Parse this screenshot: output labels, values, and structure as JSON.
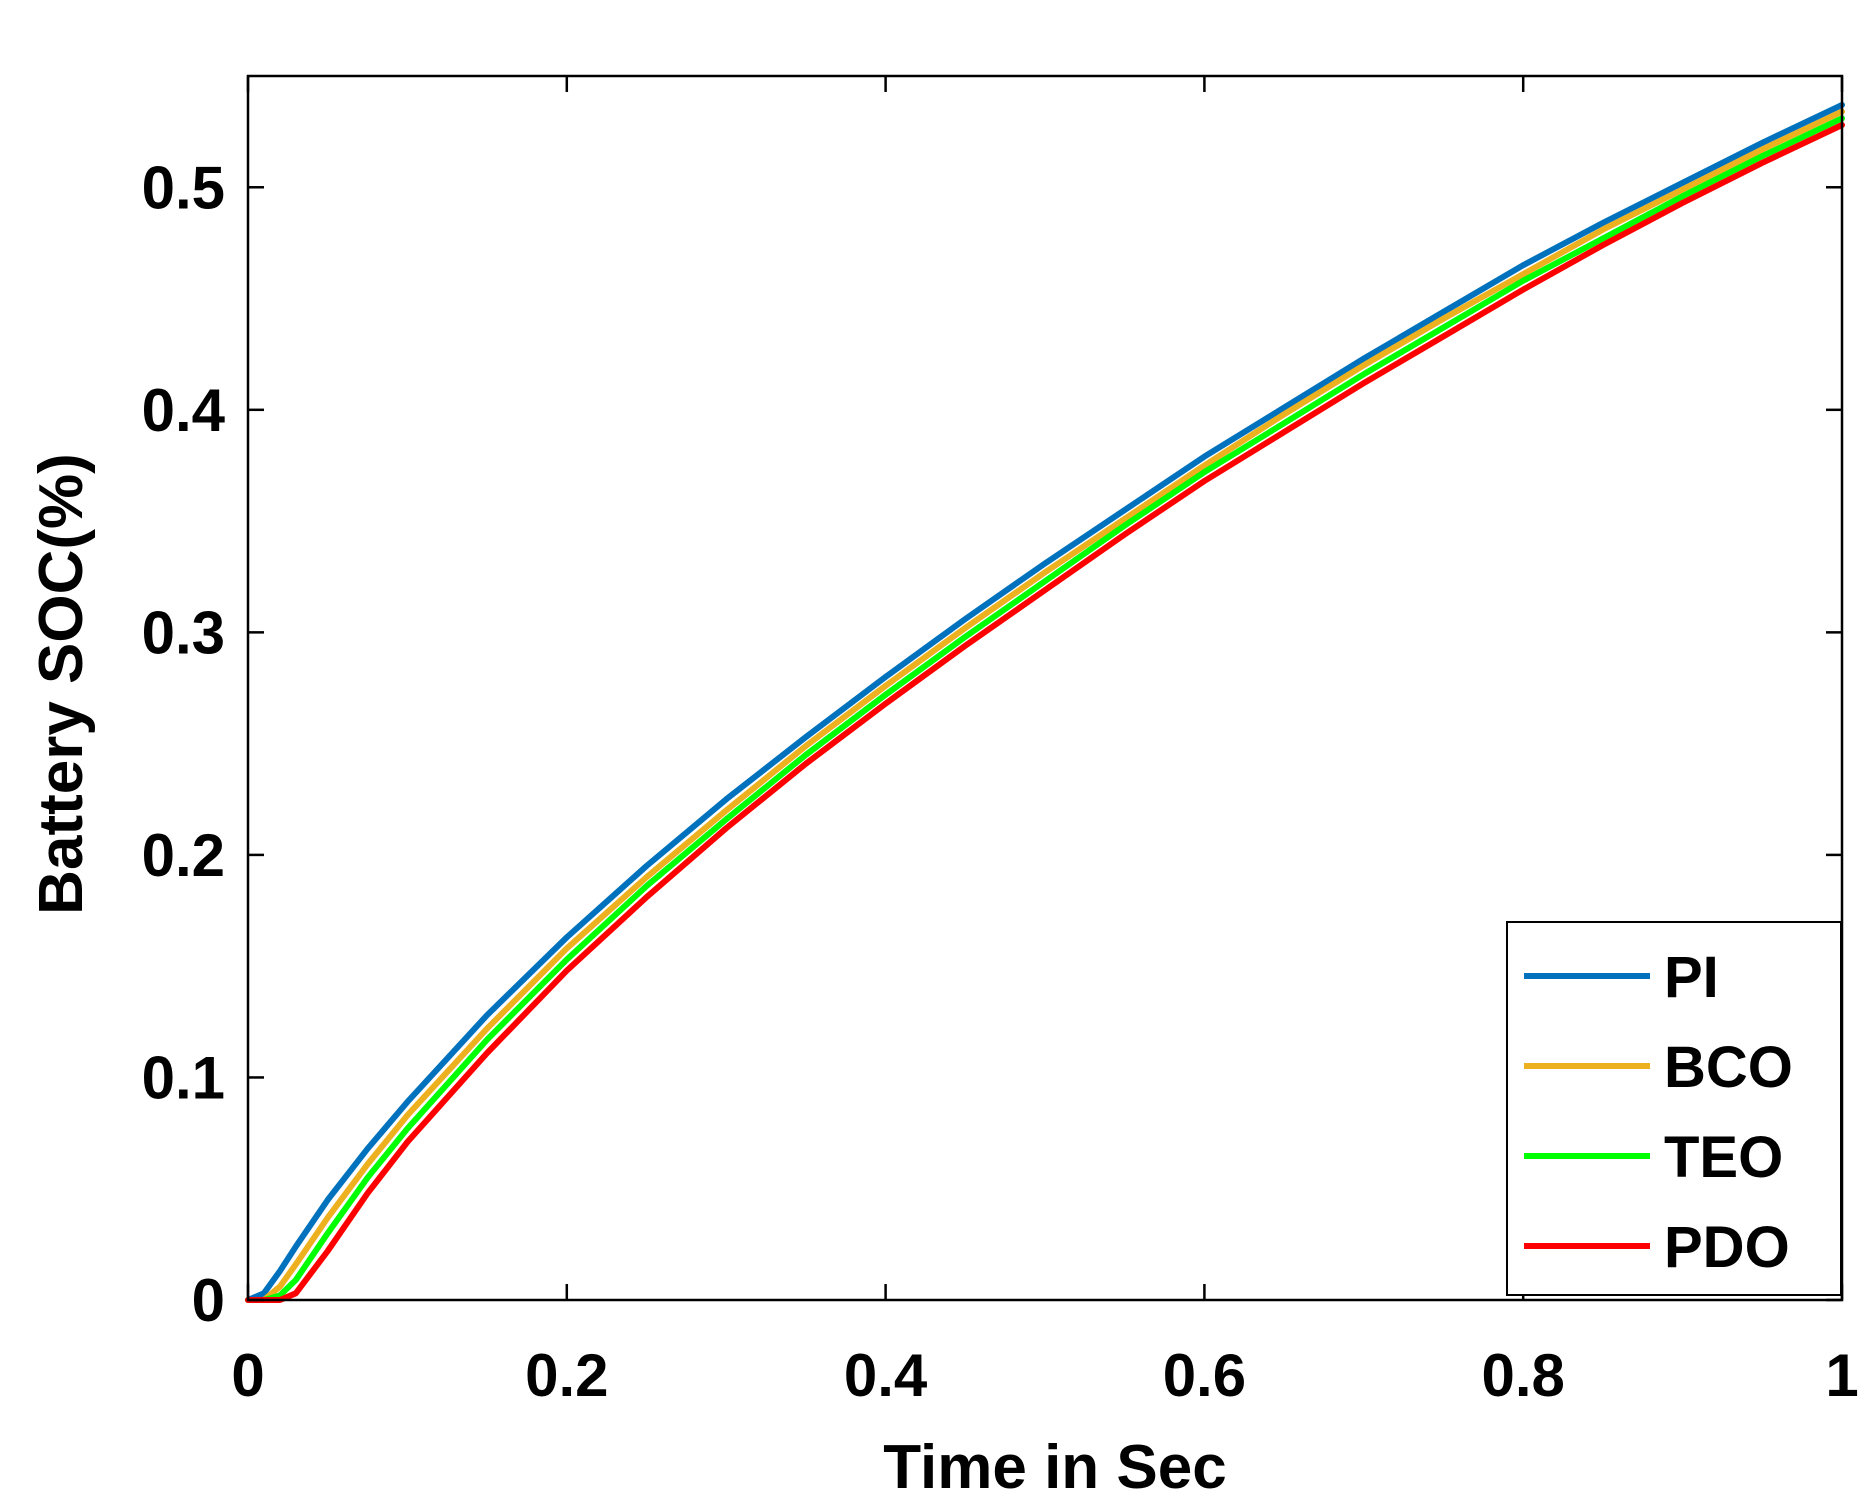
{
  "chart_data": {
    "type": "line",
    "title": "",
    "xlabel": "Time in Sec",
    "ylabel": "Battery SOC(%)",
    "xlim": [
      0,
      1
    ],
    "ylim": [
      0,
      0.55
    ],
    "xticks": [
      0,
      0.2,
      0.4,
      0.6,
      0.8,
      1
    ],
    "xtick_labels": [
      "0",
      "0.2",
      "0.4",
      "0.6",
      "0.8",
      "1"
    ],
    "yticks": [
      0,
      0.1,
      0.2,
      0.3,
      0.4,
      0.5
    ],
    "ytick_labels": [
      "0",
      "0.1",
      "0.2",
      "0.3",
      "0.4",
      "0.5"
    ],
    "grid": false,
    "legend_position": "bottom-right",
    "x": [
      0,
      0.01,
      0.02,
      0.03,
      0.05,
      0.075,
      0.1,
      0.15,
      0.2,
      0.25,
      0.3,
      0.35,
      0.4,
      0.45,
      0.5,
      0.55,
      0.6,
      0.65,
      0.7,
      0.75,
      0.8,
      0.85,
      0.9,
      0.95,
      1.0
    ],
    "series": [
      {
        "name": "PI",
        "color": "#0072BD",
        "values": [
          0,
          0.003,
          0.013,
          0.024,
          0.045,
          0.068,
          0.089,
          0.128,
          0.163,
          0.195,
          0.225,
          0.253,
          0.28,
          0.306,
          0.331,
          0.355,
          0.379,
          0.401,
          0.423,
          0.444,
          0.465,
          0.484,
          0.502,
          0.52,
          0.537
        ]
      },
      {
        "name": "BCO",
        "color": "#EDB120",
        "values": [
          0,
          0.0,
          0.006,
          0.016,
          0.037,
          0.061,
          0.083,
          0.122,
          0.158,
          0.19,
          0.22,
          0.249,
          0.276,
          0.302,
          0.327,
          0.351,
          0.375,
          0.398,
          0.42,
          0.441,
          0.461,
          0.481,
          0.499,
          0.517,
          0.534
        ]
      },
      {
        "name": "TEO",
        "color": "#00FF00",
        "values": [
          0,
          0.0,
          0.002,
          0.009,
          0.03,
          0.055,
          0.077,
          0.117,
          0.153,
          0.186,
          0.216,
          0.245,
          0.272,
          0.298,
          0.323,
          0.348,
          0.372,
          0.394,
          0.416,
          0.437,
          0.458,
          0.477,
          0.496,
          0.514,
          0.531
        ]
      },
      {
        "name": "PDO",
        "color": "#FF0000",
        "values": [
          0,
          0.0,
          0.0,
          0.003,
          0.022,
          0.048,
          0.071,
          0.111,
          0.148,
          0.181,
          0.212,
          0.241,
          0.268,
          0.294,
          0.319,
          0.344,
          0.368,
          0.39,
          0.412,
          0.433,
          0.454,
          0.474,
          0.493,
          0.511,
          0.528
        ]
      }
    ]
  }
}
